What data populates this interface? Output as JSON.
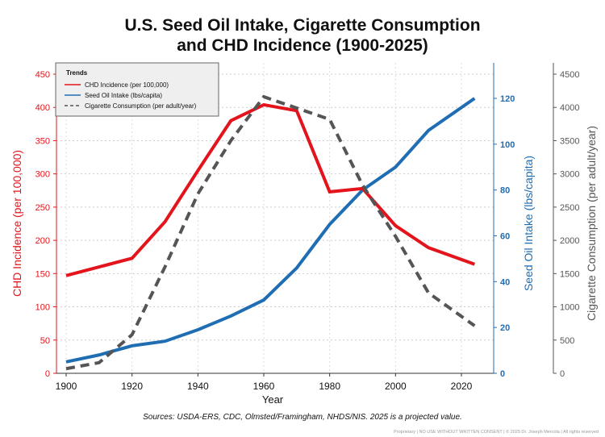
{
  "chart_data": {
    "type": "line",
    "title_line1": "U.S. Seed Oil Intake, Cigarette Consumption",
    "title_line2": "and CHD Incidence (1900-2025)",
    "xlabel": "Year",
    "x_ticks": [
      1900,
      1920,
      1940,
      1960,
      1980,
      2000,
      2020
    ],
    "xlim": [
      1897,
      2035
    ],
    "grid": true,
    "legend": {
      "title": "Trends",
      "placement": "top-left"
    },
    "axes": {
      "left": {
        "label": "CHD Incidence (per 100,000)",
        "ylim": [
          0,
          450
        ],
        "ticks": [
          0,
          50,
          100,
          150,
          200,
          250,
          300,
          350,
          400,
          450
        ],
        "color": "#e3141b"
      },
      "right1": {
        "label": "Seed Oil Intake (lbs/capita)",
        "ylim": [
          0,
          120
        ],
        "ticks": [
          0,
          20,
          40,
          60,
          80,
          100,
          120
        ],
        "color": "#1f6db3"
      },
      "right2": {
        "label": "Cigarette Consumption (per adult/year)",
        "ylim": [
          0,
          4500
        ],
        "ticks": [
          0,
          500,
          1000,
          1500,
          2000,
          2500,
          3000,
          3500,
          4000,
          4500
        ],
        "color": "#555555"
      }
    },
    "series": [
      {
        "name": "CHD Incidence (per 100,000)",
        "axis": "left",
        "color": "#e3141b",
        "style": "solid",
        "x": [
          1900,
          1920,
          1930,
          1940,
          1950,
          1960,
          1970,
          1980,
          1990,
          2000,
          2010,
          2024
        ],
        "y": [
          147,
          173,
          228,
          305,
          380,
          404,
          395,
          273,
          278,
          222,
          189,
          164
        ]
      },
      {
        "name": "Seed Oil Intake (lbs/capita)",
        "axis": "right1",
        "color": "#1f6db3",
        "style": "solid",
        "x": [
          1900,
          1910,
          1920,
          1930,
          1940,
          1950,
          1960,
          1970,
          1980,
          1990,
          2000,
          2010,
          2024
        ],
        "y": [
          5,
          8,
          12,
          14,
          19,
          25,
          32,
          46,
          65,
          80,
          90,
          106,
          120
        ]
      },
      {
        "name": "Cigarette Consumption (per adult/year)",
        "axis": "right2",
        "color": "#555555",
        "style": "dashed",
        "x": [
          1900,
          1910,
          1920,
          1930,
          1940,
          1950,
          1960,
          1970,
          1980,
          1990,
          2000,
          2010,
          2024
        ],
        "y": [
          70,
          160,
          580,
          1600,
          2700,
          3500,
          4160,
          3990,
          3820,
          2830,
          2060,
          1210,
          715
        ]
      }
    ],
    "source": "Sources: USDA-ERS, CDC, Olmsted/Framingham, NHDS/NIS. 2025 is a projected value.",
    "footer": "Proprietary | NO USE WITHOUT WRITTEN CONSENT | © 2025 Dr. Joseph Mercola | All rights reserved"
  }
}
